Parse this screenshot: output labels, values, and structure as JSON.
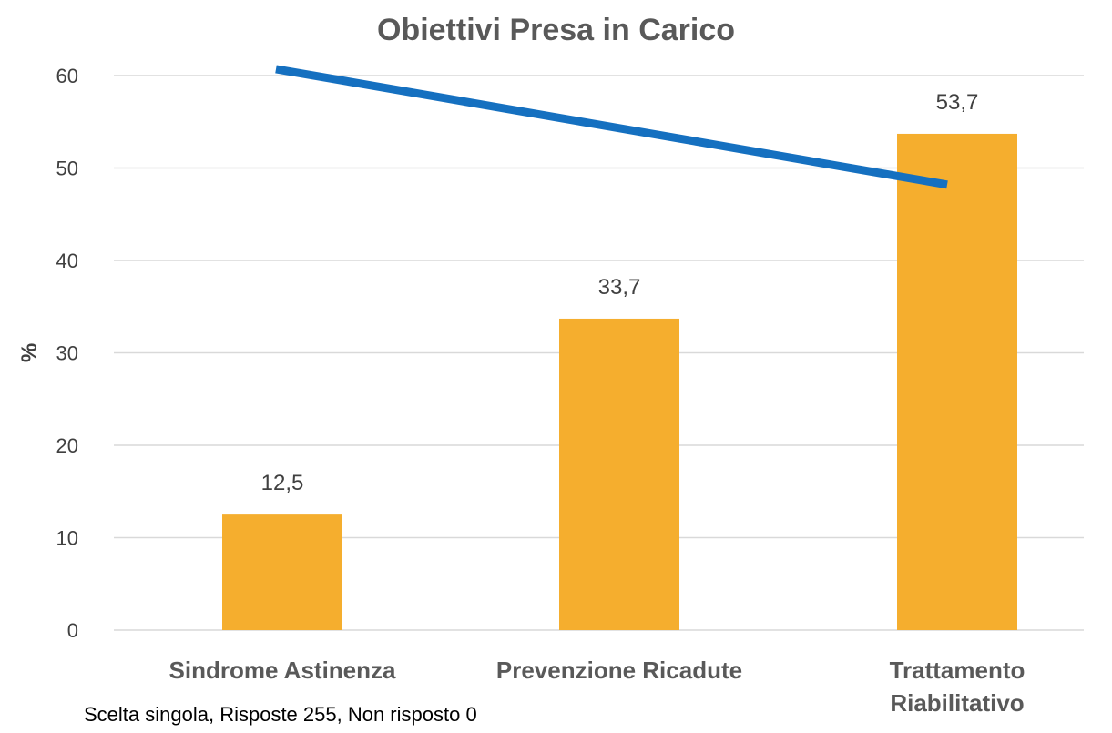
{
  "chart_data": {
    "type": "bar",
    "title": "Obiettivi Presa in Carico",
    "ylabel": "%",
    "xlabel": "",
    "categories": [
      [
        "Sindrome Astinenza"
      ],
      [
        "Prevenzione Ricadute"
      ],
      [
        "Trattamento",
        "Riabilitativo"
      ]
    ],
    "values": [
      12.5,
      33.7,
      53.7
    ],
    "data_labels": [
      "12,5",
      "33,7",
      "53,7"
    ],
    "ylim": [
      0,
      60
    ],
    "yticks": [
      0,
      10,
      20,
      30,
      40,
      50,
      60
    ],
    "grid": true,
    "colors": {
      "bar": "#F5AE2E",
      "grid": "#D9D9D9",
      "trend_line": "#1570C0",
      "text": "#404040"
    },
    "trend_line": {
      "description_hidden": true,
      "from": {
        "x_category_index": 0.0,
        "y": 60.7
      },
      "to": {
        "x_category_index": 2.0,
        "y": 48.2
      }
    }
  },
  "footnote": "Scelta singola, Risposte 255, Non risposto 0"
}
